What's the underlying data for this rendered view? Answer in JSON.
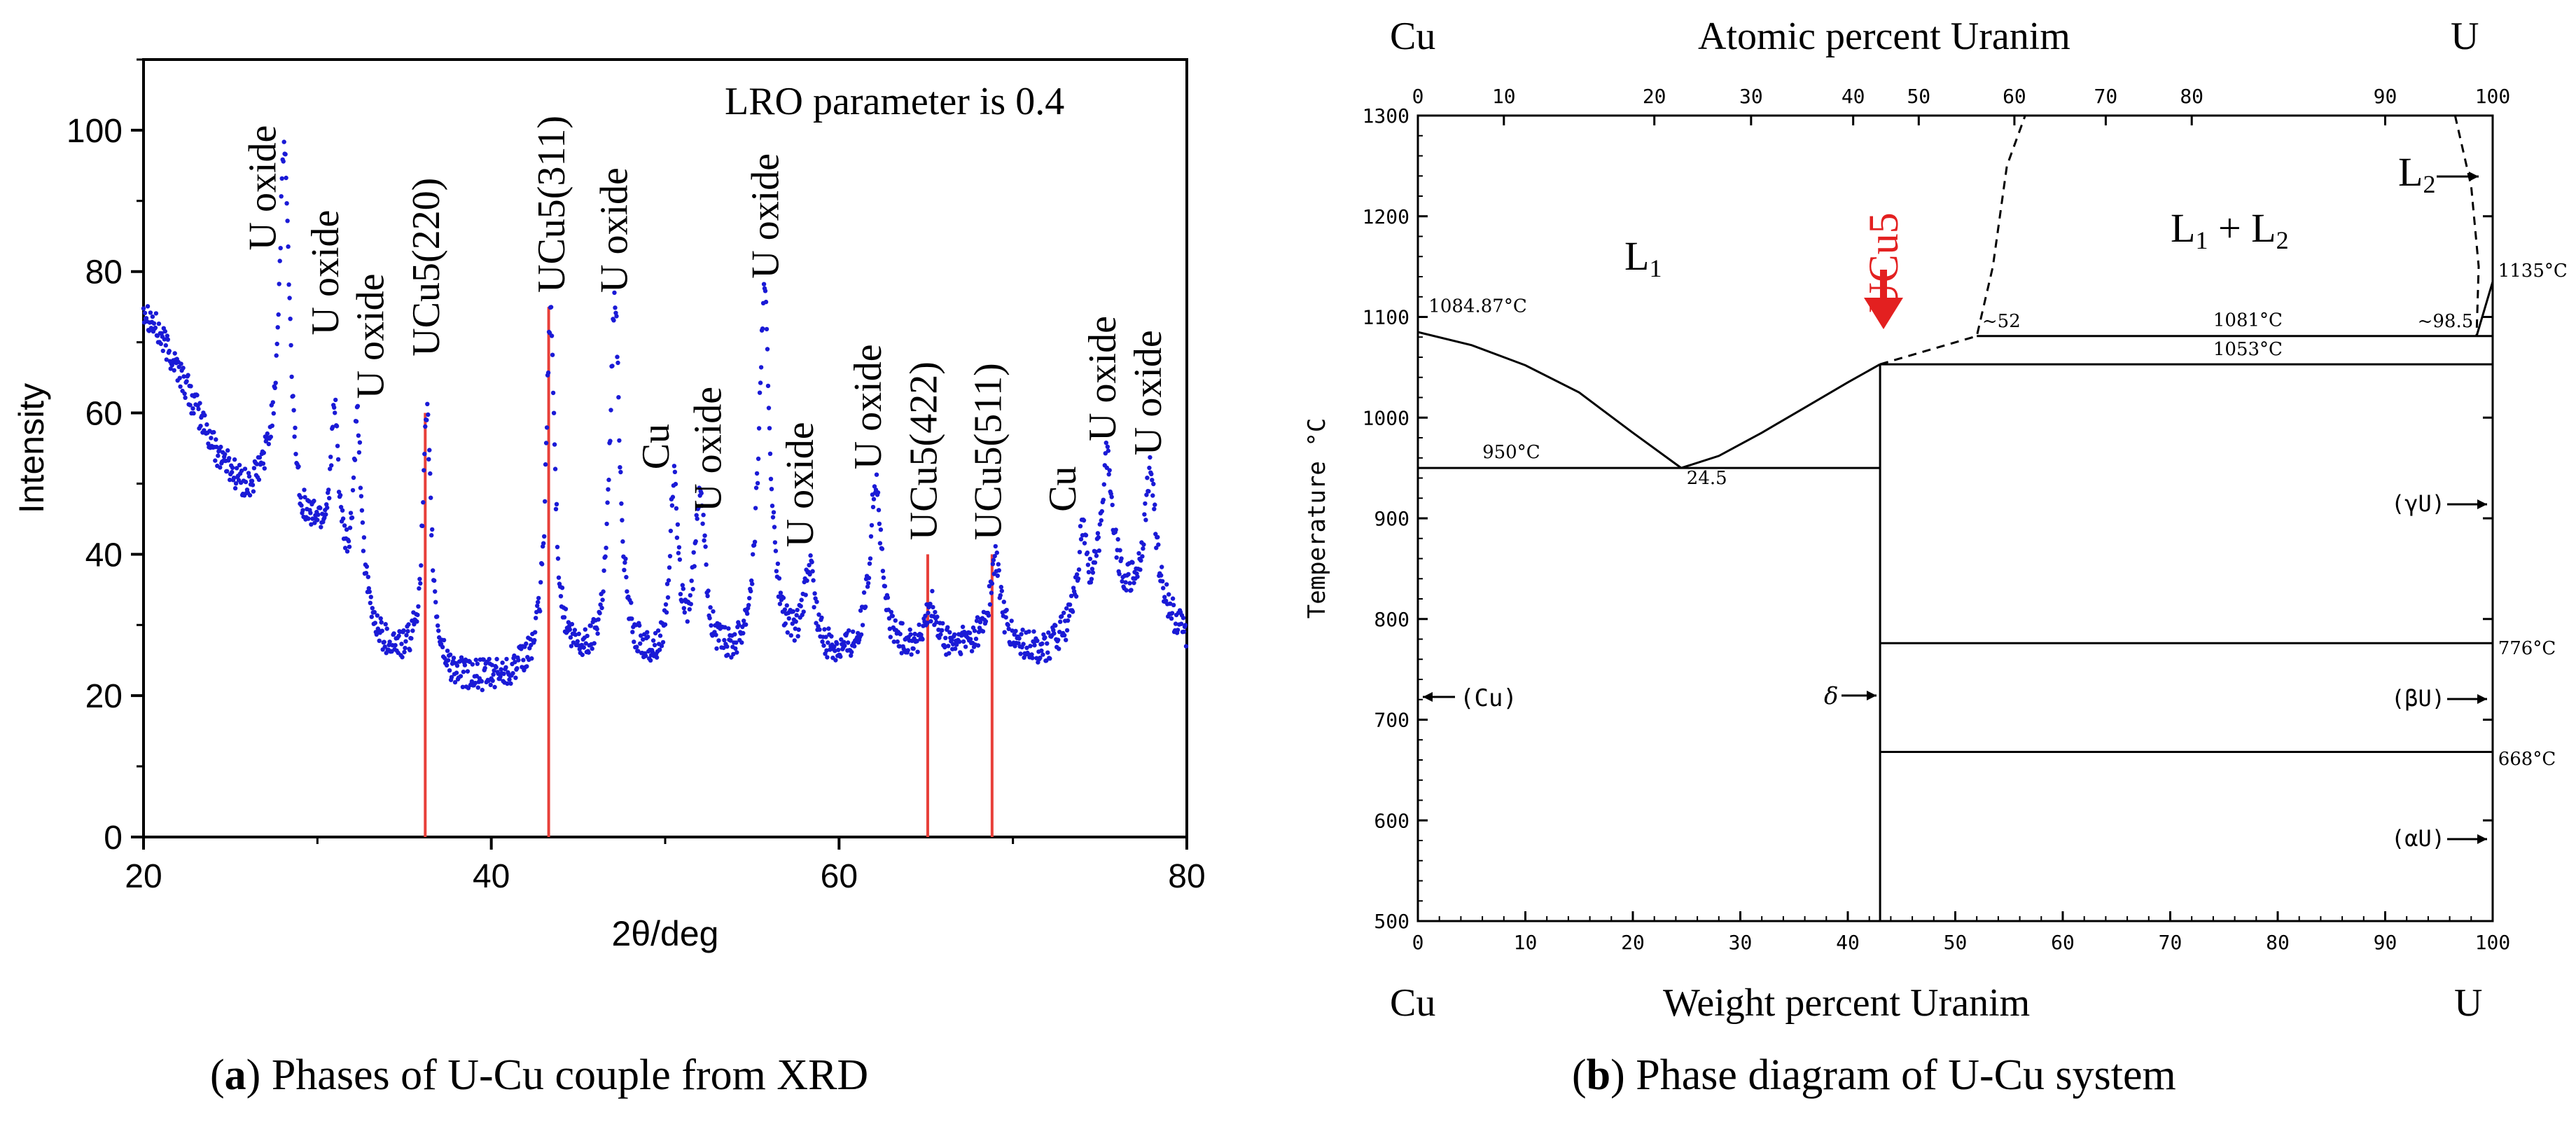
{
  "panel_a": {
    "letter": "a",
    "caption": "Phases of U-Cu couple from XRD",
    "annotation": "LRO parameter is 0.4",
    "colors": {
      "points": "#1a1ad6",
      "ref_lines": "#e8403a",
      "axis": "#000000"
    }
  },
  "panel_b": {
    "letter": "b",
    "caption": "Phase diagram of U-Cu system",
    "top_left": "Cu",
    "top_right": "U",
    "top_axis_title": "Atomic percent Uranim",
    "bottom_left": "Cu",
    "bottom_right": "U",
    "bottom_axis_title": "Weight percent Uranim",
    "y_title": "Temperature °C",
    "ucu5_marker": "UCu5",
    "colors": {
      "marker": "#e32020",
      "lines": "#000000"
    }
  },
  "chart_data": [
    {
      "type": "scatter",
      "title": "",
      "xlabel": "2θ/deg",
      "ylabel": "Intensity",
      "xlim": [
        20,
        80
      ],
      "ylim": [
        0,
        110
      ],
      "xticks": [
        "20",
        "40",
        "60",
        "80"
      ],
      "yticks": [
        "0",
        "20",
        "40",
        "60",
        "80",
        "100"
      ],
      "profile": {
        "background": [
          [
            20,
            75
          ],
          [
            22,
            66
          ],
          [
            24,
            55
          ],
          [
            26,
            48
          ],
          [
            27,
            50
          ],
          [
            28,
            50
          ],
          [
            29,
            42
          ],
          [
            30,
            42
          ],
          [
            32,
            30
          ],
          [
            34,
            26
          ],
          [
            36,
            24
          ],
          [
            38,
            22
          ],
          [
            40,
            22
          ],
          [
            42,
            23
          ],
          [
            44,
            24
          ],
          [
            46,
            24
          ],
          [
            48,
            24
          ],
          [
            50,
            23
          ],
          [
            52,
            24
          ],
          [
            54,
            24
          ],
          [
            56,
            25
          ],
          [
            58,
            25
          ],
          [
            60,
            25
          ],
          [
            62,
            25
          ],
          [
            64,
            26
          ],
          [
            66,
            26
          ],
          [
            68,
            27
          ],
          [
            70,
            26
          ],
          [
            72,
            26
          ],
          [
            74,
            30
          ],
          [
            76,
            33
          ],
          [
            78,
            32
          ],
          [
            80,
            28
          ]
        ],
        "peaks": [
          {
            "x": 28.1,
            "h": 48,
            "w": 0.35
          },
          {
            "x": 31.0,
            "h": 22,
            "w": 0.3
          },
          {
            "x": 32.3,
            "h": 28,
            "w": 0.3
          },
          {
            "x": 36.3,
            "h": 35,
            "w": 0.3
          },
          {
            "x": 43.4,
            "h": 50,
            "w": 0.3
          },
          {
            "x": 47.1,
            "h": 51,
            "w": 0.35
          },
          {
            "x": 50.5,
            "h": 25,
            "w": 0.3
          },
          {
            "x": 52.0,
            "h": 24,
            "w": 0.35
          },
          {
            "x": 55.7,
            "h": 51,
            "w": 0.4
          },
          {
            "x": 58.3,
            "h": 12,
            "w": 0.35
          },
          {
            "x": 62.1,
            "h": 25,
            "w": 0.4
          },
          {
            "x": 65.3,
            "h": 6,
            "w": 0.35
          },
          {
            "x": 69.0,
            "h": 12,
            "w": 0.4
          },
          {
            "x": 74.0,
            "h": 12,
            "w": 0.3
          },
          {
            "x": 75.4,
            "h": 21,
            "w": 0.4
          },
          {
            "x": 77.9,
            "h": 19,
            "w": 0.4
          }
        ]
      },
      "reference_lines": [
        {
          "label": "UCu5(220)",
          "x": 36.2,
          "intensity": 60
        },
        {
          "label": "UCu5(311)",
          "x": 43.3,
          "intensity": 75
        },
        {
          "label": "UCu5(422)",
          "x": 65.1,
          "intensity": 40
        },
        {
          "label": "UCu5(511)",
          "x": 68.8,
          "intensity": 40
        }
      ],
      "peak_labels": [
        {
          "text": "U oxide",
          "x": 27.6,
          "y": 83
        },
        {
          "text": "U oxide",
          "x": 31.2,
          "y": 71
        },
        {
          "text": "U oxide",
          "x": 33.8,
          "y": 62
        },
        {
          "text": "UCu5(220)",
          "x": 37.0,
          "y": 68
        },
        {
          "text": "UCu5(311)",
          "x": 44.2,
          "y": 77
        },
        {
          "text": "U oxide",
          "x": 47.8,
          "y": 77
        },
        {
          "text": "Cu",
          "x": 50.2,
          "y": 52
        },
        {
          "text": "U oxide",
          "x": 53.2,
          "y": 46
        },
        {
          "text": "U oxide",
          "x": 56.5,
          "y": 79
        },
        {
          "text": "U oxide",
          "x": 58.5,
          "y": 41
        },
        {
          "text": "U oxide",
          "x": 62.4,
          "y": 52
        },
        {
          "text": "UCu5(422)",
          "x": 65.6,
          "y": 42
        },
        {
          "text": "UCu5(511)",
          "x": 69.3,
          "y": 42
        },
        {
          "text": "Cu",
          "x": 73.6,
          "y": 46
        },
        {
          "text": "U oxide",
          "x": 75.9,
          "y": 56
        },
        {
          "text": "U oxide",
          "x": 78.5,
          "y": 54
        }
      ]
    },
    {
      "type": "line",
      "title": "Phase diagram of U-Cu system",
      "xlabel": "Weight percent Uranim",
      "ylabel": "Temperature °C",
      "xlim": [
        0,
        100
      ],
      "ylim": [
        500,
        1300
      ],
      "xticks": [
        "0",
        "10",
        "20",
        "30",
        "40",
        "50",
        "60",
        "70",
        "80",
        "90",
        "100"
      ],
      "yticks": [
        "500",
        "600",
        "700",
        "800",
        "900",
        "1000",
        "1100",
        "1200",
        "1300"
      ],
      "top_axis": {
        "title": "Atomic percent Uranim",
        "ticks": [
          [
            "0",
            0
          ],
          [
            "10",
            8
          ],
          [
            "20",
            22
          ],
          [
            "30",
            31
          ],
          [
            "40",
            40.5
          ],
          [
            "50",
            46.6
          ],
          [
            "60",
            55.5
          ],
          [
            "70",
            64
          ],
          [
            "80",
            72
          ],
          [
            "90",
            90
          ],
          [
            "100",
            100
          ]
        ]
      },
      "series": [
        {
          "name": "liquidus Cu side",
          "values": [
            [
              0,
              1085
            ],
            [
              5,
              1072
            ],
            [
              10,
              1052
            ],
            [
              15,
              1025
            ],
            [
              20,
              985
            ],
            [
              24.5,
              950
            ]
          ]
        },
        {
          "name": "liquidus UCu5 side",
          "values": [
            [
              24.5,
              950
            ],
            [
              28,
              962
            ],
            [
              32,
              985
            ],
            [
              36,
              1010
            ],
            [
              40,
              1035
            ],
            [
              43,
              1053
            ]
          ]
        },
        {
          "name": "miscibility gap",
          "style": "dashed",
          "values": [
            [
              43,
              1053
            ],
            [
              52,
              1081
            ],
            [
              53.5,
              1150
            ],
            [
              54.8,
              1250
            ],
            [
              56.5,
              1300
            ]
          ]
        },
        {
          "name": "miscibility gap U side",
          "style": "dashed",
          "values": [
            [
              96.5,
              1300
            ],
            [
              98,
              1230
            ],
            [
              98.7,
              1150
            ],
            [
              98.5,
              1081
            ]
          ]
        },
        {
          "name": "monotectic",
          "values": [
            [
              52,
              1081
            ],
            [
              100,
              1081
            ]
          ]
        },
        {
          "name": "peritectic",
          "values": [
            [
              43,
              1053
            ],
            [
              100,
              1053
            ]
          ]
        },
        {
          "name": "eutectic",
          "values": [
            [
              0,
              950
            ],
            [
              43,
              950
            ]
          ]
        },
        {
          "name": "UCu5 line",
          "values": [
            [
              43,
              500
            ],
            [
              43,
              1053
            ]
          ]
        },
        {
          "name": "776 isotherm",
          "values": [
            [
              43,
              776
            ],
            [
              100,
              776
            ]
          ]
        },
        {
          "name": "668 isotherm",
          "values": [
            [
              43,
              668
            ],
            [
              100,
              668
            ]
          ]
        },
        {
          "name": "U liquidus",
          "values": [
            [
              98.5,
              1081
            ],
            [
              100,
              1135
            ]
          ]
        }
      ],
      "annotations": [
        {
          "text": "1084.87°C",
          "x": 1,
          "y": 1105
        },
        {
          "text": "950°C",
          "x": 6,
          "y": 960
        },
        {
          "text": "24.5",
          "x": 25,
          "y": 934
        },
        {
          "text": "~52",
          "x": 52.5,
          "y": 1090
        },
        {
          "text": "1081°C",
          "x": 74,
          "y": 1091
        },
        {
          "text": "~98.5",
          "x": 93,
          "y": 1090
        },
        {
          "text": "1053°C",
          "x": 74,
          "y": 1062
        },
        {
          "text": "1135°C",
          "x": 100.5,
          "y": 1140
        },
        {
          "text": "776°C",
          "x": 100.5,
          "y": 765
        },
        {
          "text": "668°C",
          "x": 100.5,
          "y": 655
        }
      ],
      "phase_labels": [
        "L1",
        "L1 + L2",
        "L2",
        "(Cu)",
        "δ",
        "(γU)",
        "(βU)",
        "(αU)"
      ]
    }
  ]
}
